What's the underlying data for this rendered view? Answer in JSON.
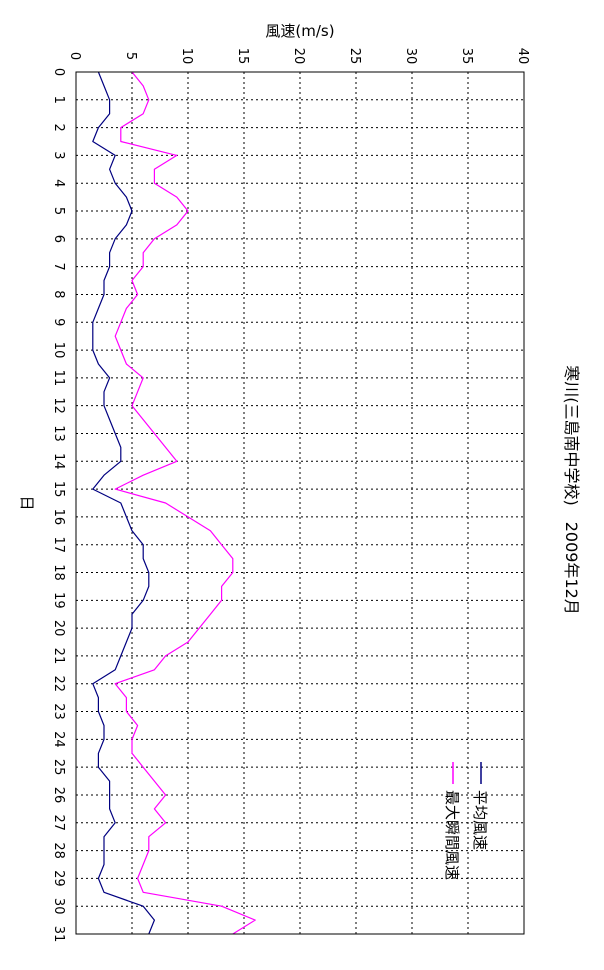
{
  "chart_data": {
    "type": "line",
    "title": "寒川(三島南中学校)　2009年12月",
    "xlabel": "日",
    "ylabel": "風速(m/s)",
    "xlim": [
      0,
      31
    ],
    "ylim": [
      0,
      40
    ],
    "x_ticks": [
      0,
      1,
      2,
      3,
      4,
      5,
      6,
      7,
      8,
      9,
      10,
      11,
      12,
      13,
      14,
      15,
      16,
      17,
      18,
      19,
      20,
      21,
      22,
      23,
      24,
      25,
      26,
      27,
      28,
      29,
      30,
      31
    ],
    "y_ticks": [
      0,
      5,
      10,
      15,
      20,
      25,
      30,
      35,
      40
    ],
    "grid": true,
    "legend_position": "bottom-right",
    "series": [
      {
        "name": "平均風速",
        "color": "#000080",
        "x": [
          0,
          0.5,
          1,
          1.5,
          2,
          2.5,
          3,
          3.5,
          4,
          4.5,
          5,
          5.5,
          6,
          6.5,
          7,
          7.5,
          8,
          8.5,
          9,
          9.5,
          10,
          10.5,
          11,
          11.5,
          12,
          12.5,
          13,
          13.5,
          14,
          14.5,
          15,
          15.5,
          16,
          16.5,
          17,
          17.5,
          18,
          18.5,
          19,
          19.5,
          20,
          20.5,
          21,
          21.5,
          22,
          22.5,
          23,
          23.5,
          24,
          24.5,
          25,
          25.5,
          26,
          26.5,
          27,
          27.5,
          28,
          28.5,
          29,
          29.5,
          30,
          30.5,
          31
        ],
        "values": [
          2.0,
          2.5,
          3.0,
          3.0,
          2.0,
          1.5,
          3.5,
          3.0,
          3.5,
          4.5,
          5.0,
          4.5,
          3.5,
          3.0,
          3.0,
          2.5,
          2.5,
          2.0,
          1.5,
          1.5,
          1.5,
          2.0,
          3.0,
          2.5,
          2.5,
          3.0,
          3.5,
          4.0,
          4.0,
          2.5,
          1.5,
          4.0,
          4.5,
          5.0,
          6.0,
          6.0,
          6.5,
          6.5,
          6.0,
          5.0,
          5.0,
          4.5,
          4.0,
          3.5,
          1.5,
          2.0,
          2.0,
          2.5,
          2.5,
          2.0,
          2.0,
          3.0,
          3.0,
          3.0,
          3.5,
          2.5,
          2.5,
          2.5,
          2.0,
          2.5,
          6.0,
          7.0,
          6.5
        ]
      },
      {
        "name": "最大瞬間風速",
        "color": "#ff00ff",
        "x": [
          0,
          0.5,
          1,
          1.5,
          2,
          2.5,
          3,
          3.5,
          4,
          4.5,
          5,
          5.5,
          6,
          6.5,
          7,
          7.5,
          8,
          8.5,
          9,
          9.5,
          10,
          10.5,
          11,
          11.5,
          12,
          12.5,
          13,
          13.5,
          14,
          14.5,
          15,
          15.5,
          16,
          16.5,
          17,
          17.5,
          18,
          18.5,
          19,
          19.5,
          20,
          20.5,
          21,
          21.5,
          22,
          22.5,
          23,
          23.5,
          24,
          24.5,
          25,
          25.5,
          26,
          26.5,
          27,
          27.5,
          28,
          28.5,
          29,
          29.5,
          30,
          30.5,
          31
        ],
        "values": [
          5.0,
          6.0,
          6.5,
          6.0,
          4.0,
          4.0,
          9.0,
          7.0,
          7.0,
          9.0,
          10.0,
          9.0,
          7.0,
          6.0,
          6.0,
          5.0,
          5.5,
          4.5,
          4.0,
          3.5,
          4.0,
          4.5,
          6.0,
          5.5,
          5.0,
          6.0,
          7.0,
          8.0,
          9.0,
          6.0,
          3.5,
          8.0,
          10.0,
          12.0,
          13.0,
          14.0,
          14.0,
          13.0,
          13.0,
          12.0,
          11.0,
          10.0,
          8.0,
          7.0,
          3.5,
          4.5,
          4.5,
          5.5,
          5.0,
          5.0,
          6.0,
          7.0,
          8.0,
          7.0,
          8.0,
          6.5,
          6.5,
          6.0,
          5.5,
          6.0,
          13.0,
          16.0,
          14.0
        ]
      }
    ]
  }
}
